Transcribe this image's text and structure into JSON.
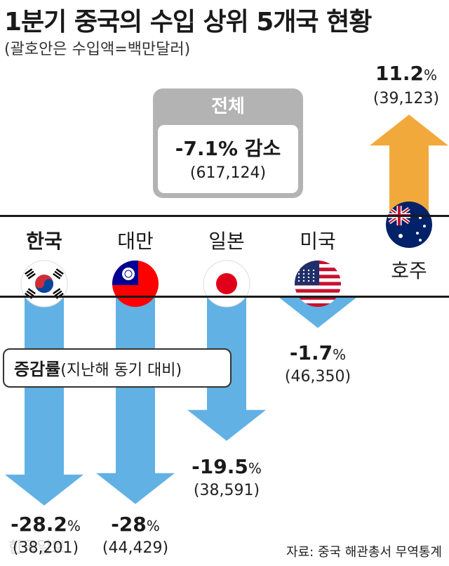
{
  "title": "1분기 중국의 수입 상위 5개국 현황",
  "subtitle": "(괄호안은 수입액=백만달러)",
  "total": {
    "label": "전체",
    "value": "-7.1% 감소",
    "amount": "(617,124)"
  },
  "legend": {
    "bold": "증감률",
    "rest": "(지난해 동기 대비)"
  },
  "source": "자료: 중국 해관총서 무역통계",
  "watermark": "한국일보",
  "unit_symbol": "%",
  "colors": {
    "decrease": "#62b1e4",
    "increase": "#f2a93b",
    "total_box": "#b3b3b3"
  },
  "chart_data": {
    "type": "bar",
    "categories": [
      "한국",
      "대만",
      "일본",
      "미국",
      "호주"
    ],
    "values": [
      -28.2,
      -28,
      -19.5,
      -1.7,
      11.2
    ],
    "amounts": [
      38201,
      44429,
      38591,
      46350,
      39123
    ],
    "pct_labels": [
      "-28.2",
      "-28",
      "-19.5",
      "-1.7",
      "11.2"
    ],
    "amount_labels": [
      "(38,201)",
      "(44,429)",
      "(38,591)",
      "(46,350)",
      "(39,123)"
    ],
    "flag_icons": [
      "south-korea-flag-icon",
      "taiwan-flag-icon",
      "japan-flag-icon",
      "usa-flag-icon",
      "australia-flag-icon"
    ],
    "title": "1분기 중국의 수입 상위 5개국 현황"
  }
}
